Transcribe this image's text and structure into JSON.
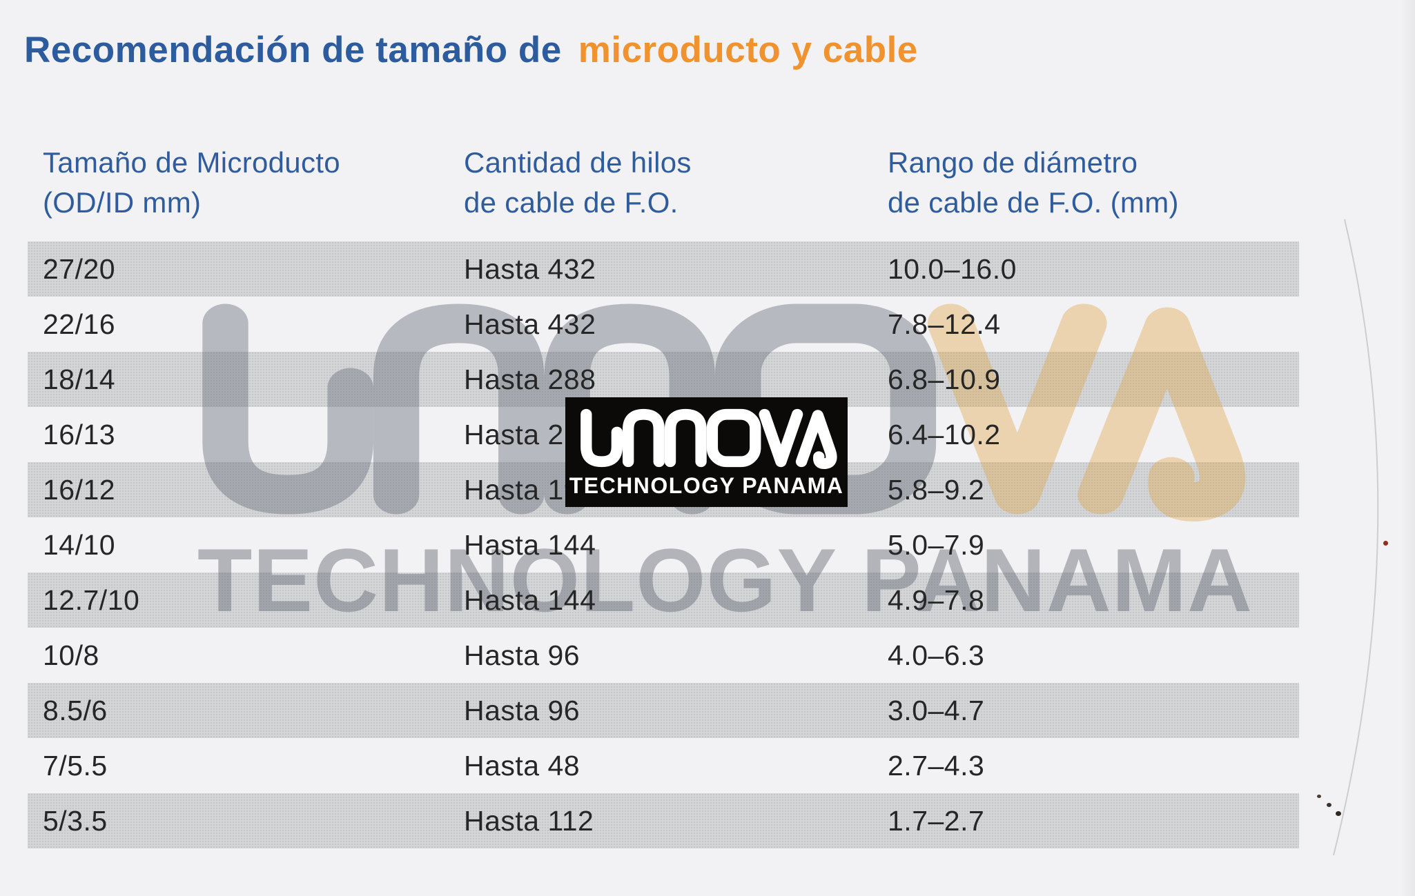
{
  "page": {
    "title_part1": "Recomendación de tamaño de",
    "title_part2": "microducto y cable"
  },
  "colors": {
    "title_blue": "#2d5c9e",
    "title_orange": "#f0922d",
    "header_blue": "#2e5c9c",
    "row_stripe_gray": "#d4d5d7",
    "page_background": "#f2f1f3",
    "badge_background": "#0b0a08",
    "badge_foreground": "#ffffff",
    "watermark_gray": "#b8bbc1",
    "watermark_tan": "#ead2a9"
  },
  "table": {
    "columns": [
      {
        "line1": "Tamaño de Microducto",
        "line2": "(OD/ID mm)"
      },
      {
        "line1": "Cantidad de hilos",
        "line2": "de cable de F.O."
      },
      {
        "line1": "Rango de diámetro",
        "line2": "de cable de F.O. (mm)"
      }
    ],
    "rows": [
      {
        "microducto": "27/20",
        "hilos": "Hasta 432",
        "rango": "10.0–16.0"
      },
      {
        "microducto": "22/16",
        "hilos": "Hasta 432",
        "rango": "7.8–12.4"
      },
      {
        "microducto": "18/14",
        "hilos": "Hasta 288",
        "rango": "6.8–10.9"
      },
      {
        "microducto": "16/13",
        "hilos": "Hasta 2",
        "rango": "6.4–10.2"
      },
      {
        "microducto": "16/12",
        "hilos": "Hasta 192",
        "rango": "5.8–9.2"
      },
      {
        "microducto": "14/10",
        "hilos": "Hasta 144",
        "rango": "5.0–7.9"
      },
      {
        "microducto": "12.7/10",
        "hilos": "Hasta 144",
        "rango": "4.9–7.8"
      },
      {
        "microducto": "10/8",
        "hilos": "Hasta 96",
        "rango": "4.0–6.3"
      },
      {
        "microducto": "8.5/6",
        "hilos": "Hasta 96",
        "rango": "3.0–4.7"
      },
      {
        "microducto": "7/5.5",
        "hilos": "Hasta 48",
        "rango": "2.7–4.3"
      },
      {
        "microducto": "5/3.5",
        "hilos": "Hasta 112",
        "rango": "1.7–2.7"
      }
    ]
  },
  "watermark": {
    "badge_subtitle": "TECHNOLOGY PANAMA",
    "big_subtitle": "TECHNOLOGY PANAMA"
  },
  "chart_data": {
    "type": "table",
    "title": "Recomendación de tamaño de microducto y cable",
    "columns": [
      "Tamaño de Microducto (OD/ID mm)",
      "Cantidad de hilos de cable de F.O.",
      "Rango de diámetro de cable de F.O. (mm)"
    ],
    "rows": [
      [
        "27/20",
        "Hasta 432",
        "10.0–16.0"
      ],
      [
        "22/16",
        "Hasta 432",
        "7.8–12.4"
      ],
      [
        "18/14",
        "Hasta 288",
        "6.8–10.9"
      ],
      [
        "16/13",
        "Hasta 2",
        "6.4–10.2"
      ],
      [
        "16/12",
        "Hasta 192",
        "5.8–9.2"
      ],
      [
        "14/10",
        "Hasta 144",
        "5.0–7.9"
      ],
      [
        "12.7/10",
        "Hasta 144",
        "4.9–7.8"
      ],
      [
        "10/8",
        "Hasta 96",
        "4.0–6.3"
      ],
      [
        "8.5/6",
        "Hasta 96",
        "3.0–4.7"
      ],
      [
        "7/5.5",
        "Hasta 48",
        "2.7–4.3"
      ],
      [
        "5/3.5",
        "Hasta 112",
        "1.7–2.7"
      ]
    ]
  }
}
